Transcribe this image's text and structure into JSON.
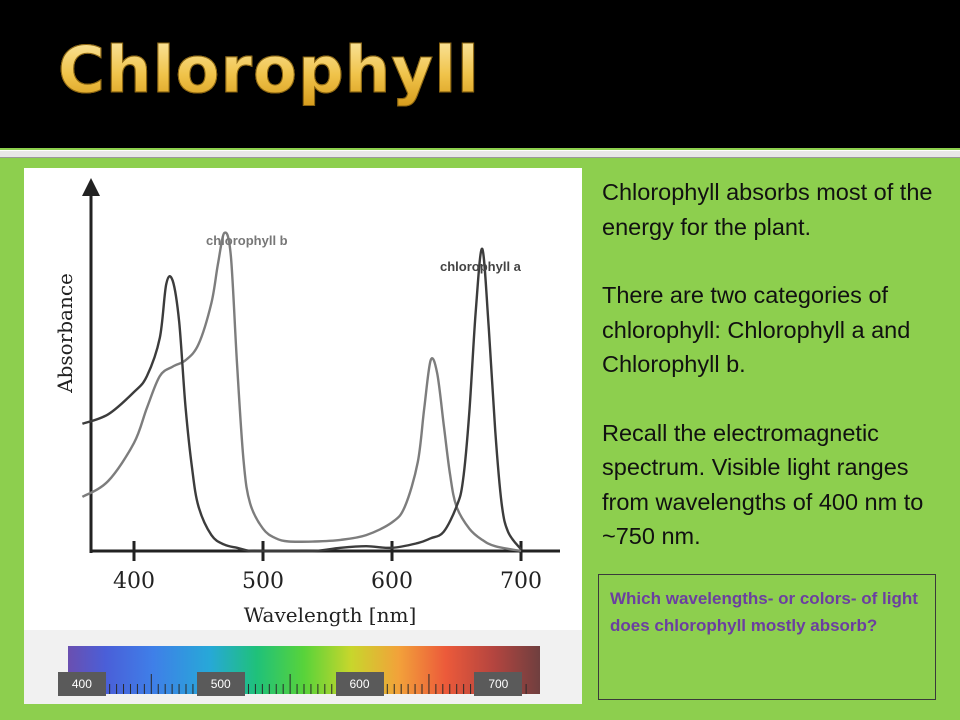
{
  "slide": {
    "title": "Chlorophyll",
    "paragraphs": [
      "Chlorophyll absorbs most of the energy for the plant.",
      "There are two categories of chlorophyll: Chlorophyll a and Chlorophyll b.",
      "Recall the electromagnetic spectrum. Visible light ranges from wavelengths of 400 nm to  ~750 nm."
    ],
    "question": "Which wavelengths- or colors- of light does chlorophyll mostly absorb?"
  },
  "chart_data": {
    "type": "line",
    "title": "",
    "xlabel": "Wavelength [nm]",
    "ylabel": "Absorbance",
    "xlim": [
      360,
      720
    ],
    "ylim": [
      0,
      1
    ],
    "xticks": [
      400,
      500,
      600,
      700
    ],
    "grid": false,
    "legend": "inline labels",
    "series": [
      {
        "name": "chlorophyll a",
        "color": "#3c3c3c",
        "x": [
          360,
          380,
          400,
          410,
          420,
          425,
          430,
          435,
          440,
          445,
          450,
          460,
          470,
          480,
          490,
          500,
          520,
          540,
          560,
          580,
          600,
          620,
          630,
          640,
          650,
          655,
          660,
          665,
          670,
          675,
          680,
          685,
          690,
          700
        ],
        "y": [
          0.4,
          0.43,
          0.5,
          0.55,
          0.67,
          0.84,
          0.85,
          0.72,
          0.45,
          0.26,
          0.14,
          0.05,
          0.02,
          0.01,
          0.0,
          0.0,
          0.0,
          0.0,
          0.01,
          0.015,
          0.01,
          0.025,
          0.04,
          0.06,
          0.14,
          0.22,
          0.44,
          0.76,
          0.95,
          0.7,
          0.38,
          0.15,
          0.06,
          0.005
        ]
      },
      {
        "name": "chlorophyll b",
        "color": "#7d7d7d",
        "x": [
          360,
          380,
          400,
          410,
          420,
          430,
          440,
          450,
          460,
          465,
          470,
          475,
          480,
          485,
          490,
          500,
          510,
          520,
          540,
          560,
          580,
          600,
          610,
          620,
          625,
          630,
          635,
          640,
          645,
          650,
          660,
          670,
          680,
          700
        ],
        "y": [
          0.17,
          0.22,
          0.34,
          0.45,
          0.55,
          0.58,
          0.6,
          0.65,
          0.78,
          0.9,
          1.0,
          0.93,
          0.58,
          0.28,
          0.15,
          0.07,
          0.04,
          0.03,
          0.03,
          0.035,
          0.05,
          0.09,
          0.14,
          0.28,
          0.45,
          0.6,
          0.56,
          0.4,
          0.24,
          0.14,
          0.07,
          0.035,
          0.015,
          0.0
        ]
      }
    ],
    "spectrum_bar": {
      "labels": [
        "400",
        "500",
        "600",
        "700"
      ],
      "range": [
        390,
        730
      ]
    }
  }
}
